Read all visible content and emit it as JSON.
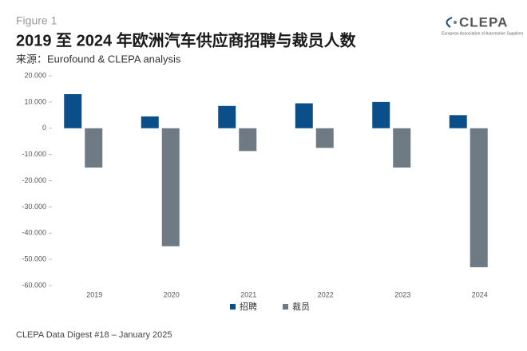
{
  "chart_data": {
    "type": "bar",
    "figure_label": "Figure 1",
    "title": "2019 至 2024 年欧洲汽车供应商招聘与裁员人数",
    "subtitle": "来源：Eurofound & CLEPA analysis",
    "footer": "CLEPA Data Digest #18 – January 2025",
    "logo": {
      "name": "CLEPA",
      "tagline": "European Association of Automotive Suppliers"
    },
    "categories": [
      "2019",
      "2020",
      "2021",
      "2022",
      "2023",
      "2024"
    ],
    "series": [
      {
        "name": "招聘",
        "color": "#0b4f8a",
        "values": [
          13000,
          4500,
          8500,
          9500,
          10000,
          5000
        ]
      },
      {
        "name": "裁员",
        "color": "#6f7b84",
        "values": [
          -15000,
          -45000,
          -8700,
          -7500,
          -15000,
          -53000
        ]
      }
    ],
    "ylim": [
      -60000,
      20000
    ],
    "yticks": [
      {
        "value": -60000,
        "label": "-60.000"
      },
      {
        "value": -50000,
        "label": "-50.000"
      },
      {
        "value": -40000,
        "label": "-40.000"
      },
      {
        "value": -30000,
        "label": "-30.000"
      },
      {
        "value": -20000,
        "label": "-20.000"
      },
      {
        "value": -10000,
        "label": "-10.000"
      },
      0,
      {
        "value": 10000,
        "label": "10.000"
      },
      {
        "value": 20000,
        "label": "20.000"
      }
    ],
    "grid": false,
    "legend": "bottom"
  }
}
